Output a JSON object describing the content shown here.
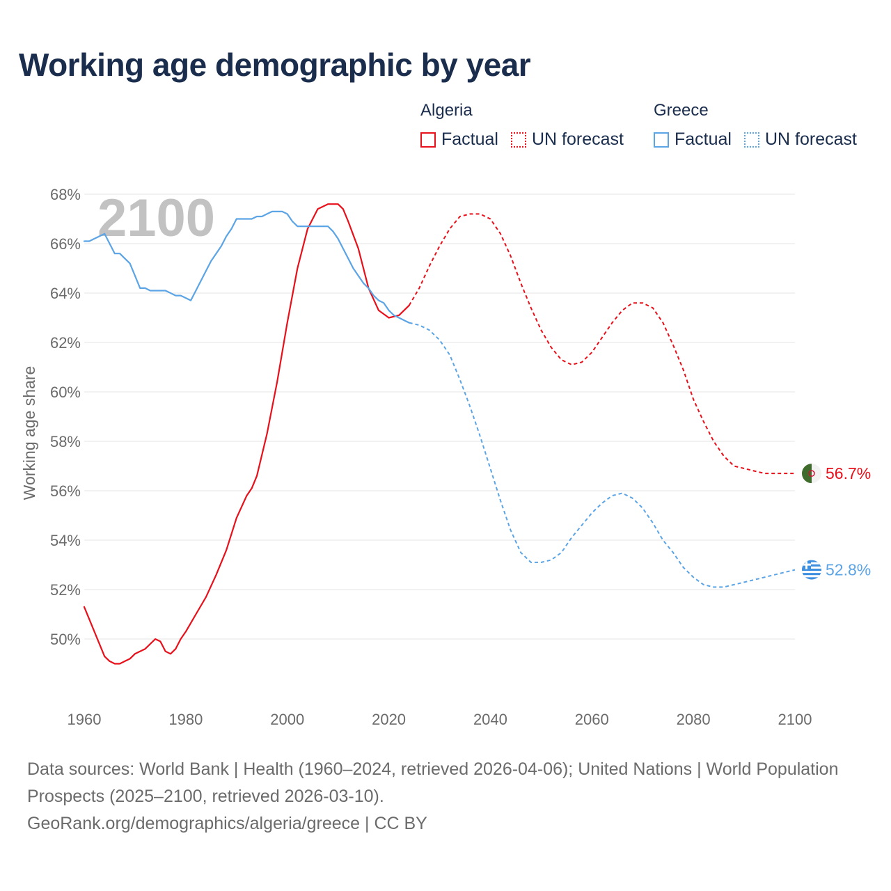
{
  "title": "Working age demographic by year",
  "year_watermark": "2100",
  "legend": {
    "algeria": {
      "name": "Algeria",
      "factual": "Factual",
      "forecast": "UN forecast"
    },
    "greece": {
      "name": "Greece",
      "factual": "Factual",
      "forecast": "UN forecast"
    }
  },
  "colors": {
    "algeria": "#e8101a",
    "greece": "#5ba4e5",
    "grid": "#e6e6e6",
    "axis_text": "#6b6b6b"
  },
  "footer": {
    "line1": "Data sources: World Bank | Health (1960–2024, retrieved 2026-04-06); United Nations | World Population Prospects (2025–2100, retrieved 2026-03-10).",
    "line2": "GeoRank.org/demographics/algeria/greece | CC BY"
  },
  "chart_data": {
    "type": "line",
    "title": "Working age demographic by year",
    "xlabel": "",
    "ylabel": "Working age share",
    "xlim": [
      1960,
      2100
    ],
    "ylim": [
      48,
      68
    ],
    "x_ticks": [
      1960,
      1980,
      2000,
      2020,
      2040,
      2060,
      2080,
      2100
    ],
    "y_ticks": [
      50,
      52,
      54,
      56,
      58,
      60,
      62,
      64,
      66,
      68
    ],
    "x_tick_labels": [
      "1960",
      "1980",
      "2000",
      "2020",
      "2040",
      "2060",
      "2080",
      "2100"
    ],
    "y_tick_labels": [
      "50%",
      "52%",
      "54%",
      "56%",
      "58%",
      "60%",
      "62%",
      "64%",
      "66%",
      "68%"
    ],
    "grid": true,
    "legend_position": "top-right",
    "series": [
      {
        "name": "Algeria",
        "key": "algeria",
        "end_label": "56.7%",
        "factual": {
          "x": [
            1960,
            1962,
            1964,
            1965,
            1966,
            1967,
            1968,
            1969,
            1970,
            1972,
            1974,
            1975,
            1976,
            1977,
            1978,
            1979,
            1980,
            1982,
            1984,
            1986,
            1988,
            1990,
            1992,
            1993,
            1994,
            1996,
            1998,
            2000,
            2002,
            2004,
            2006,
            2008,
            2010,
            2011,
            2012,
            2014,
            2016,
            2018,
            2020,
            2022,
            2024
          ],
          "y": [
            51.3,
            50.3,
            49.3,
            49.1,
            49.0,
            49.0,
            49.1,
            49.2,
            49.4,
            49.6,
            50.0,
            49.9,
            49.5,
            49.4,
            49.6,
            50.0,
            50.3,
            51.0,
            51.7,
            52.6,
            53.6,
            54.9,
            55.8,
            56.1,
            56.6,
            58.3,
            60.4,
            62.8,
            65.0,
            66.6,
            67.4,
            67.6,
            67.6,
            67.4,
            66.9,
            65.8,
            64.2,
            63.3,
            63.0,
            63.1,
            63.5
          ]
        },
        "forecast": {
          "x": [
            2024,
            2026,
            2028,
            2030,
            2032,
            2034,
            2036,
            2038,
            2040,
            2042,
            2044,
            2046,
            2048,
            2050,
            2052,
            2054,
            2056,
            2058,
            2060,
            2062,
            2064,
            2066,
            2068,
            2070,
            2072,
            2074,
            2076,
            2078,
            2080,
            2082,
            2084,
            2086,
            2088,
            2090,
            2092,
            2094,
            2096,
            2098,
            2100
          ],
          "y": [
            63.5,
            64.2,
            65.1,
            65.9,
            66.6,
            67.1,
            67.2,
            67.2,
            67.0,
            66.4,
            65.5,
            64.4,
            63.4,
            62.5,
            61.8,
            61.3,
            61.1,
            61.2,
            61.6,
            62.2,
            62.8,
            63.3,
            63.6,
            63.6,
            63.4,
            62.8,
            61.9,
            60.9,
            59.7,
            58.8,
            58.0,
            57.4,
            57.0,
            56.9,
            56.8,
            56.7,
            56.7,
            56.7,
            56.7
          ]
        }
      },
      {
        "name": "Greece",
        "key": "greece",
        "end_label": "52.8%",
        "factual": {
          "x": [
            1960,
            1961,
            1962,
            1963,
            1964,
            1965,
            1966,
            1967,
            1968,
            1969,
            1970,
            1971,
            1972,
            1973,
            1974,
            1975,
            1976,
            1977,
            1978,
            1979,
            1980,
            1981,
            1982,
            1983,
            1984,
            1985,
            1986,
            1987,
            1988,
            1989,
            1990,
            1991,
            1992,
            1993,
            1994,
            1995,
            1996,
            1997,
            1998,
            1999,
            2000,
            2001,
            2002,
            2003,
            2004,
            2005,
            2006,
            2007,
            2008,
            2009,
            2010,
            2011,
            2012,
            2013,
            2014,
            2015,
            2016,
            2017,
            2018,
            2019,
            2020,
            2021,
            2022,
            2023,
            2024
          ],
          "y": [
            66.1,
            66.1,
            66.2,
            66.3,
            66.4,
            66.0,
            65.6,
            65.6,
            65.4,
            65.2,
            64.7,
            64.2,
            64.2,
            64.1,
            64.1,
            64.1,
            64.1,
            64.0,
            63.9,
            63.9,
            63.8,
            63.7,
            64.1,
            64.5,
            64.9,
            65.3,
            65.6,
            65.9,
            66.3,
            66.6,
            67.0,
            67.0,
            67.0,
            67.0,
            67.1,
            67.1,
            67.2,
            67.3,
            67.3,
            67.3,
            67.2,
            66.9,
            66.7,
            66.7,
            66.7,
            66.7,
            66.7,
            66.7,
            66.7,
            66.5,
            66.2,
            65.8,
            65.4,
            65.0,
            64.7,
            64.4,
            64.2,
            63.9,
            63.7,
            63.6,
            63.3,
            63.1,
            63.0,
            62.9,
            62.8
          ]
        },
        "forecast": {
          "x": [
            2024,
            2026,
            2028,
            2030,
            2032,
            2034,
            2036,
            2038,
            2040,
            2042,
            2044,
            2046,
            2048,
            2050,
            2052,
            2054,
            2056,
            2058,
            2060,
            2062,
            2064,
            2066,
            2068,
            2070,
            2072,
            2074,
            2076,
            2078,
            2080,
            2082,
            2084,
            2086,
            2088,
            2090,
            2092,
            2094,
            2096,
            2098,
            2100
          ],
          "y": [
            62.8,
            62.7,
            62.5,
            62.1,
            61.5,
            60.5,
            59.4,
            58.2,
            56.9,
            55.6,
            54.4,
            53.5,
            53.1,
            53.1,
            53.2,
            53.5,
            54.1,
            54.6,
            55.1,
            55.5,
            55.8,
            55.9,
            55.7,
            55.3,
            54.7,
            54.0,
            53.5,
            52.9,
            52.5,
            52.2,
            52.1,
            52.1,
            52.2,
            52.3,
            52.4,
            52.5,
            52.6,
            52.7,
            52.8
          ]
        }
      }
    ]
  }
}
